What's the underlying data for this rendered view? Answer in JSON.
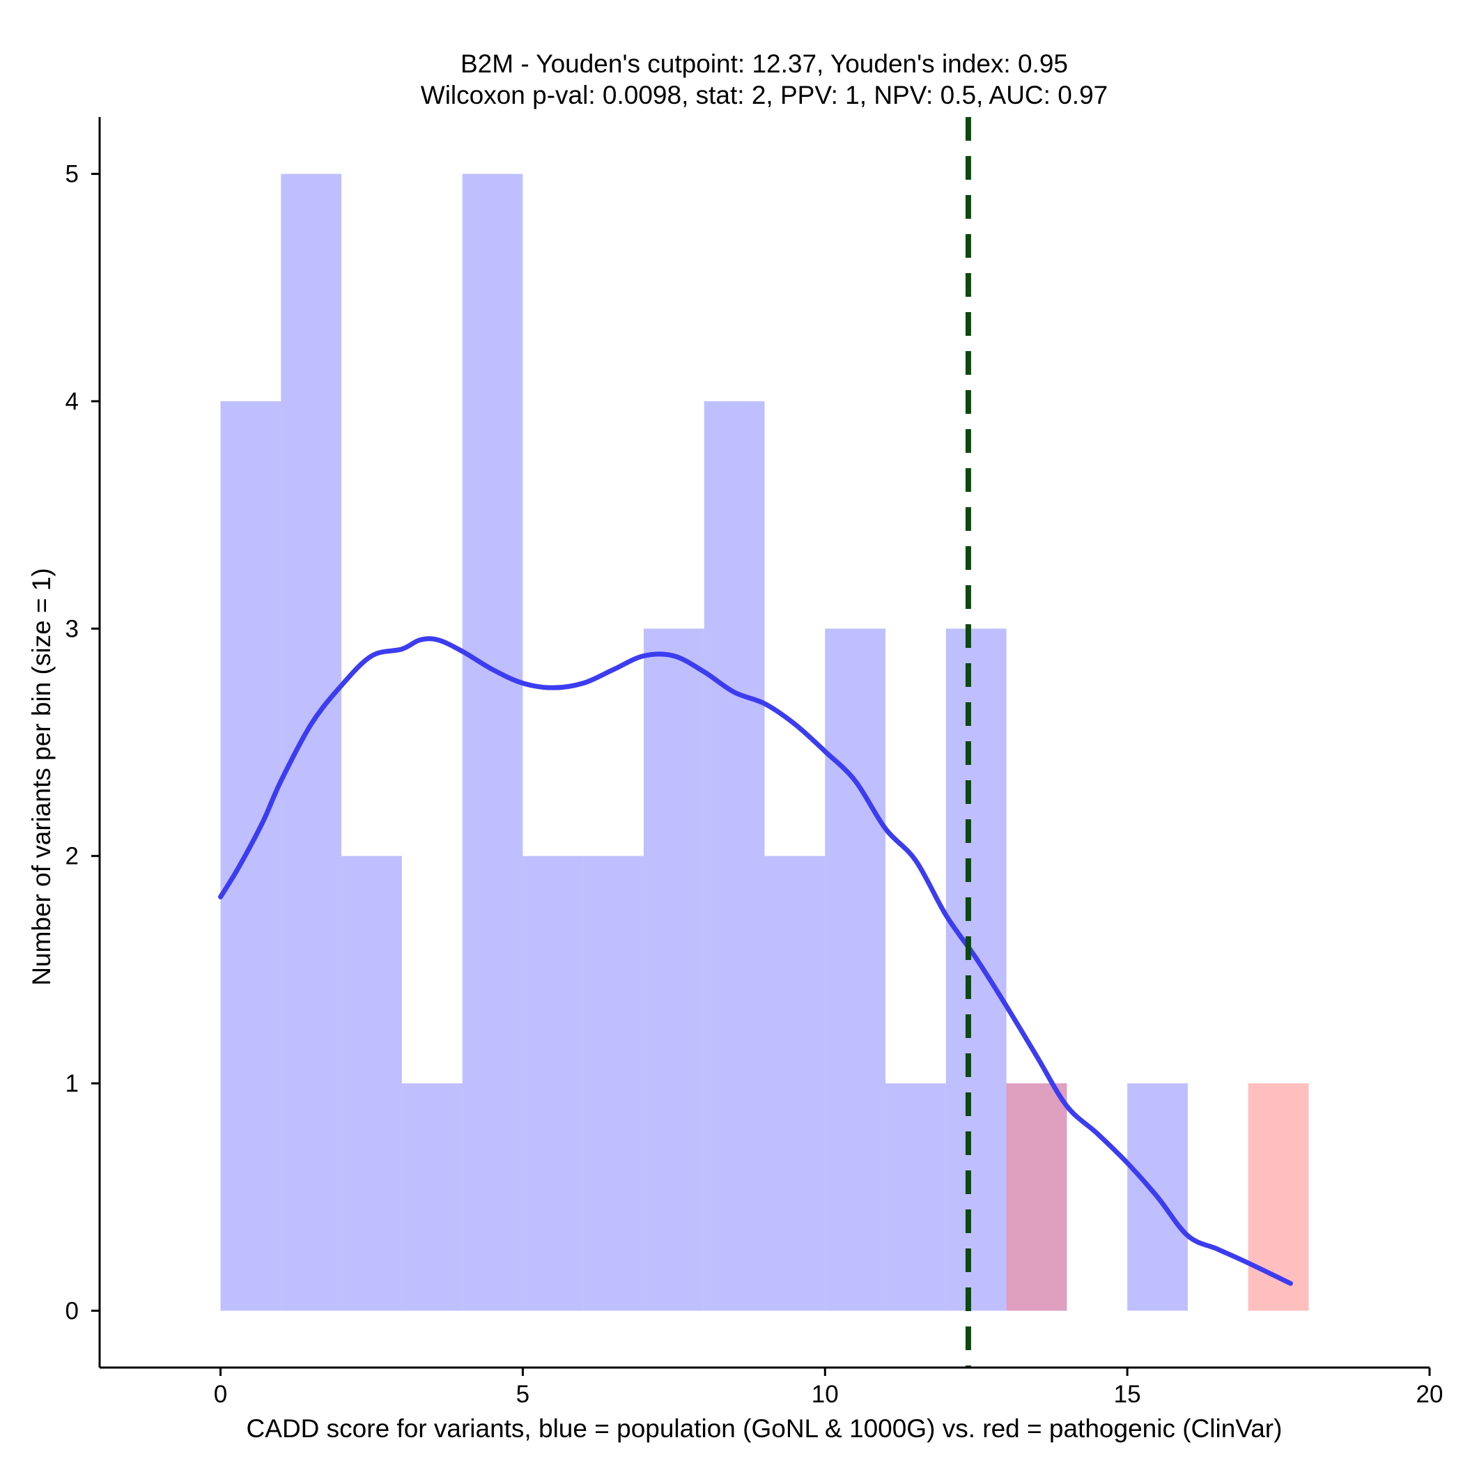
{
  "chart_data": {
    "type": "histogram",
    "title_line1": "B2M - Youden's cutpoint: 12.37, Youden's index: 0.95",
    "title_line2": "Wilcoxon p-val: 0.0098, stat: 2, PPV: 1, NPV: 0.5, AUC: 0.97",
    "xlabel": "CADD score for variants, blue = population (GoNL & 1000G) vs. red = pathogenic (ClinVar)",
    "ylabel": "Number of variants per bin (size = 1)",
    "xlim": [
      -2,
      20
    ],
    "ylim": [
      -0.25,
      5.25
    ],
    "xticks": [
      0,
      5,
      10,
      15,
      20
    ],
    "yticks": [
      0,
      1,
      2,
      3,
      4,
      5
    ],
    "bin_width": 1,
    "series": [
      {
        "name": "population (GoNL & 1000G)",
        "color": "#8080ff",
        "opacity": 0.5,
        "bins": [
          {
            "x0": 0,
            "count": 4
          },
          {
            "x0": 1,
            "count": 5
          },
          {
            "x0": 2,
            "count": 2
          },
          {
            "x0": 3,
            "count": 1
          },
          {
            "x0": 4,
            "count": 5
          },
          {
            "x0": 5,
            "count": 2
          },
          {
            "x0": 6,
            "count": 2
          },
          {
            "x0": 7,
            "count": 3
          },
          {
            "x0": 8,
            "count": 4
          },
          {
            "x0": 9,
            "count": 2
          },
          {
            "x0": 10,
            "count": 3
          },
          {
            "x0": 11,
            "count": 1
          },
          {
            "x0": 12,
            "count": 3
          },
          {
            "x0": 13,
            "count": 1
          },
          {
            "x0": 15,
            "count": 1
          }
        ]
      },
      {
        "name": "pathogenic (ClinVar)",
        "color": "#ff8080",
        "opacity": 0.5,
        "bins": [
          {
            "x0": 13,
            "count": 1
          },
          {
            "x0": 17,
            "count": 1
          }
        ]
      }
    ],
    "density_curve": {
      "color": "#3c3cf0",
      "x": [
        0,
        0.3,
        0.7,
        1.0,
        1.5,
        2.0,
        2.5,
        3.0,
        3.3,
        3.6,
        4.0,
        4.5,
        5.0,
        5.5,
        6.0,
        6.5,
        7.0,
        7.5,
        8.0,
        8.5,
        9.0,
        9.5,
        10.0,
        10.5,
        11.0,
        11.5,
        12.0,
        12.5,
        13.0,
        13.5,
        14.0,
        14.5,
        15.0,
        15.5,
        16.0,
        16.5,
        17.0,
        17.7
      ],
      "y": [
        1.82,
        1.95,
        2.15,
        2.33,
        2.58,
        2.75,
        2.88,
        2.91,
        2.95,
        2.95,
        2.9,
        2.82,
        2.76,
        2.74,
        2.76,
        2.82,
        2.88,
        2.88,
        2.81,
        2.72,
        2.67,
        2.58,
        2.46,
        2.33,
        2.12,
        1.98,
        1.74,
        1.55,
        1.34,
        1.12,
        0.9,
        0.78,
        0.65,
        0.5,
        0.33,
        0.27,
        0.21,
        0.12
      ]
    },
    "cutpoint": {
      "x": 12.37,
      "color": "#0a4a0a",
      "style": "dashed"
    }
  }
}
